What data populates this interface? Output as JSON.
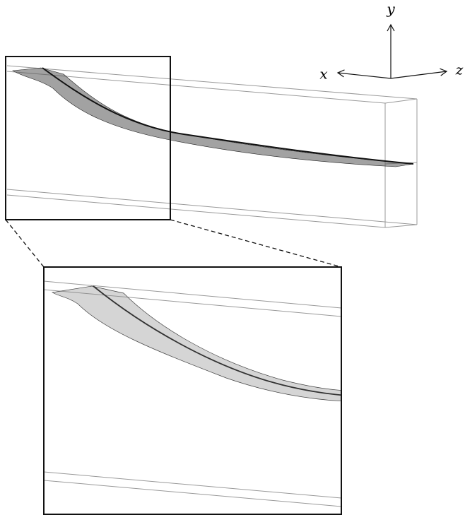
{
  "axes": {
    "y": "y",
    "x": "x",
    "z": "z"
  }
}
